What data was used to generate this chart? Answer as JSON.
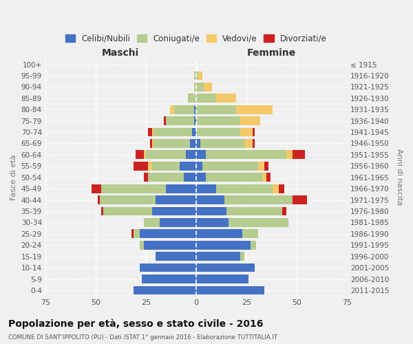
{
  "age_groups": [
    "0-4",
    "5-9",
    "10-14",
    "15-19",
    "20-24",
    "25-29",
    "30-34",
    "35-39",
    "40-44",
    "45-49",
    "50-54",
    "55-59",
    "60-64",
    "65-69",
    "70-74",
    "75-79",
    "80-84",
    "85-89",
    "90-94",
    "95-99",
    "100+"
  ],
  "birth_years": [
    "2011-2015",
    "2006-2010",
    "2001-2005",
    "1996-2000",
    "1991-1995",
    "1986-1990",
    "1981-1985",
    "1976-1980",
    "1971-1975",
    "1966-1970",
    "1961-1965",
    "1956-1960",
    "1951-1955",
    "1946-1950",
    "1941-1945",
    "1936-1940",
    "1931-1935",
    "1926-1930",
    "1921-1925",
    "1916-1920",
    "≤ 1915"
  ],
  "colors": {
    "celibi": "#4472c4",
    "coniugati": "#b5cc8e",
    "vedovi": "#f5c96a",
    "divorziati": "#cc2222"
  },
  "males": {
    "celibi": [
      31,
      27,
      28,
      20,
      26,
      28,
      18,
      22,
      20,
      15,
      6,
      8,
      5,
      3,
      2,
      1,
      1,
      0,
      0,
      0,
      0
    ],
    "coniugati": [
      0,
      0,
      0,
      0,
      2,
      3,
      8,
      24,
      28,
      32,
      18,
      14,
      20,
      18,
      19,
      14,
      10,
      4,
      1,
      1,
      0
    ],
    "vedovi": [
      0,
      0,
      0,
      0,
      0,
      0,
      0,
      0,
      0,
      0,
      0,
      2,
      1,
      1,
      1,
      0,
      2,
      0,
      0,
      0,
      0
    ],
    "divorziati": [
      0,
      0,
      0,
      0,
      0,
      1,
      0,
      1,
      1,
      5,
      2,
      7,
      4,
      1,
      2,
      1,
      0,
      0,
      0,
      0,
      0
    ]
  },
  "females": {
    "celibi": [
      34,
      26,
      29,
      22,
      27,
      23,
      16,
      15,
      14,
      10,
      5,
      3,
      5,
      2,
      0,
      0,
      0,
      0,
      0,
      0,
      0
    ],
    "coniugati": [
      0,
      0,
      0,
      2,
      3,
      8,
      30,
      28,
      34,
      28,
      28,
      28,
      40,
      22,
      22,
      22,
      20,
      10,
      4,
      1,
      0
    ],
    "vedovi": [
      0,
      0,
      0,
      0,
      0,
      0,
      0,
      0,
      0,
      3,
      2,
      3,
      3,
      4,
      6,
      10,
      18,
      10,
      4,
      2,
      0
    ],
    "divorziati": [
      0,
      0,
      0,
      0,
      0,
      0,
      0,
      2,
      7,
      3,
      2,
      2,
      6,
      1,
      1,
      0,
      0,
      0,
      0,
      0,
      0
    ]
  },
  "xlim": 75,
  "title": "Popolazione per età, sesso e stato civile - 2016",
  "subtitle": "COMUNE DI SANT'IPPOLITO (PU) - Dati ISTAT 1° gennaio 2016 - Elaborazione TUTTITALIA.IT",
  "ylabel_left": "Fasce di età",
  "ylabel_right": "Anni di nascita",
  "xlabel_male": "Maschi",
  "xlabel_female": "Femmine",
  "legend_labels": [
    "Celibi/Nubili",
    "Coniugati/e",
    "Vedovi/e",
    "Divorziati/e"
  ],
  "bg_color": "#f0f0f0"
}
